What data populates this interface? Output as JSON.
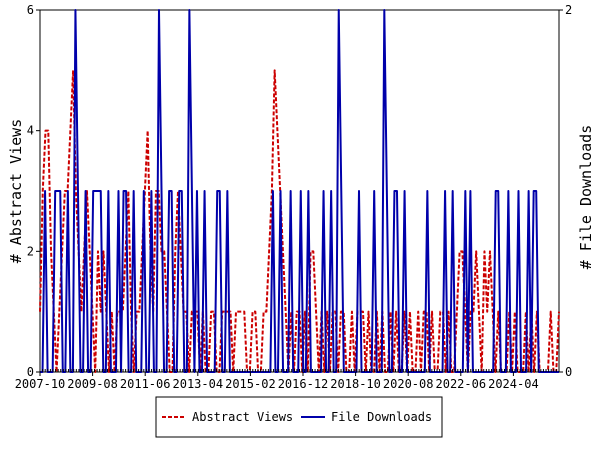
{
  "chart_data": {
    "type": "line",
    "title": "",
    "x_tick_labels": [
      "2007-10",
      "2009-08",
      "2011-06",
      "2013-04",
      "2015-02",
      "2016-12",
      "2018-10",
      "2020-08",
      "2022-06",
      "2024-04"
    ],
    "y_left": {
      "label": "# Abstract Views",
      "ylim": [
        0,
        6
      ],
      "ticks": [
        "0",
        "2",
        "4",
        "6"
      ]
    },
    "y_right": {
      "label": "# File Downloads",
      "ylim": [
        0,
        2
      ],
      "ticks": [
        "0",
        "2"
      ]
    },
    "grid": false,
    "legend_position": "bottom-center",
    "series": [
      {
        "name": "Abstract Views",
        "axis": "left",
        "color": "#cc0000",
        "style": "dashed",
        "values": [
          1,
          3,
          4,
          4,
          2,
          1,
          0,
          1,
          2,
          3,
          3,
          4,
          5,
          3,
          2,
          1,
          2,
          3,
          2,
          1,
          0,
          2,
          1,
          2,
          1,
          0,
          1,
          0,
          1,
          1,
          1,
          2,
          3,
          1,
          0,
          1,
          1,
          2,
          3,
          4,
          2,
          1,
          3,
          3,
          2,
          2,
          1,
          0,
          0,
          2,
          3,
          2,
          1,
          1,
          0,
          1,
          1,
          1,
          0,
          1,
          0,
          0,
          1,
          1,
          0,
          0,
          1,
          1,
          1,
          1,
          0,
          1,
          1,
          1,
          1,
          0,
          0,
          1,
          1,
          0,
          0,
          1,
          1,
          2,
          3,
          5,
          4,
          3,
          2,
          1,
          0,
          1,
          0,
          1,
          1,
          0,
          1,
          0,
          2,
          2,
          1,
          0,
          1,
          0,
          1,
          0,
          1,
          1,
          0,
          1,
          1,
          0,
          0,
          1,
          0,
          1,
          1,
          1,
          0,
          1,
          0,
          0,
          1,
          0,
          1,
          0,
          0,
          1,
          0,
          1,
          0,
          0,
          1,
          0,
          1,
          0,
          0,
          1,
          0,
          1,
          1,
          0,
          1,
          0,
          0,
          1,
          1,
          0,
          1,
          0,
          0,
          1,
          2,
          2,
          1,
          0,
          1,
          1,
          2,
          1,
          0,
          2,
          1,
          2,
          1,
          0,
          1,
          0,
          0,
          0,
          1,
          0,
          1,
          0,
          0,
          0,
          1,
          0,
          1,
          0,
          1,
          0,
          0,
          0,
          0,
          1,
          0,
          0,
          1
        ]
      },
      {
        "name": "File Downloads",
        "axis": "right",
        "color": "#0000aa",
        "style": "solid",
        "values": [
          0,
          0,
          1,
          0,
          0,
          0,
          1,
          1,
          1,
          0,
          0,
          1,
          0,
          0,
          2,
          1,
          0,
          0,
          1,
          0,
          0,
          1,
          1,
          1,
          1,
          0,
          0,
          1,
          0,
          0,
          0,
          1,
          0,
          1,
          1,
          0,
          0,
          1,
          0,
          0,
          0,
          1,
          0,
          0,
          1,
          0,
          0,
          2,
          1,
          0,
          0,
          1,
          1,
          0,
          0,
          1,
          1,
          0,
          0,
          2,
          1,
          0,
          1,
          0,
          0,
          1,
          0,
          0,
          0,
          0,
          1,
          1,
          0,
          0,
          1,
          0,
          0,
          0,
          0,
          0,
          0,
          0,
          0,
          0,
          0,
          0,
          0,
          0,
          0,
          0,
          0,
          0,
          1,
          0,
          0,
          1,
          0,
          0,
          0,
          1,
          0,
          0,
          0,
          1,
          0,
          0,
          1,
          0,
          0,
          0,
          0,
          0,
          1,
          0,
          0,
          1,
          0,
          0,
          2,
          1,
          0,
          0,
          0,
          0,
          0,
          0,
          1,
          0,
          0,
          0,
          0,
          0,
          1,
          0,
          0,
          0,
          2,
          1,
          0,
          0,
          1,
          1,
          0,
          0,
          1,
          0,
          0,
          0,
          0,
          0,
          0,
          0,
          0,
          1,
          0,
          0,
          0,
          0,
          0,
          0,
          1,
          0,
          0,
          1,
          0,
          0,
          0,
          0,
          1,
          0,
          1,
          0,
          0,
          0,
          0,
          0,
          0,
          0,
          0,
          0,
          1,
          1,
          0,
          0,
          0,
          1,
          0,
          0,
          0,
          1,
          0,
          0,
          0,
          1,
          0,
          1,
          1,
          0,
          0,
          0,
          0,
          0,
          0,
          0,
          0,
          0
        ]
      }
    ]
  }
}
